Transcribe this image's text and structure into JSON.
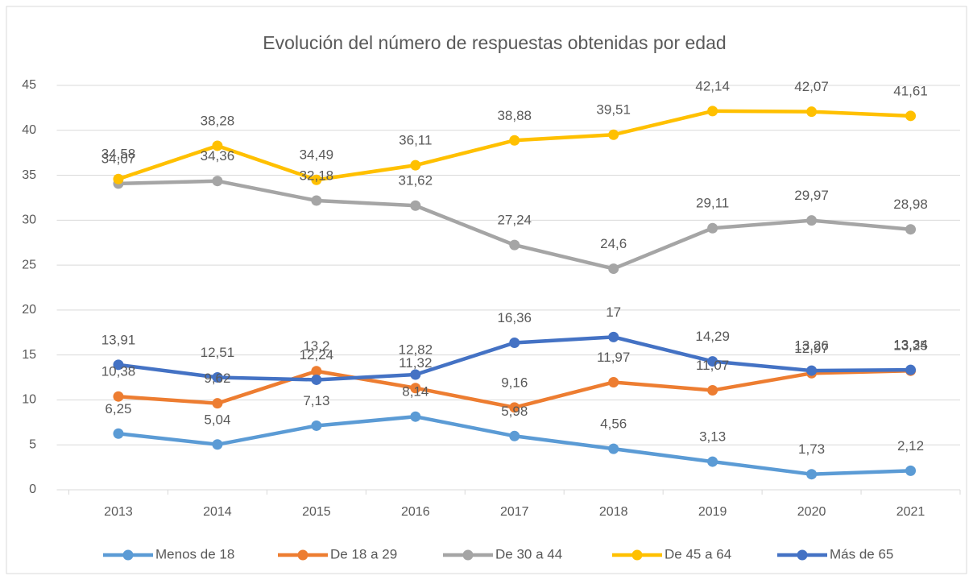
{
  "chart_data": {
    "type": "line",
    "title": "Evolución del número de respuestas obtenidas por edad",
    "categories": [
      "2013",
      "2014",
      "2015",
      "2016",
      "2017",
      "2018",
      "2019",
      "2020",
      "2021"
    ],
    "ylim": [
      0,
      45
    ],
    "yticks": [
      0,
      5,
      10,
      15,
      20,
      25,
      30,
      35,
      40,
      45
    ],
    "grid": true,
    "legend": "bottom",
    "series": [
      {
        "name": "Menos de 18",
        "color": "#5b9bd5",
        "values": [
          6.25,
          5.04,
          7.13,
          8.14,
          5.98,
          4.56,
          3.13,
          1.73,
          2.12
        ],
        "value_labels": [
          "6,25",
          "5,04",
          "7,13",
          "8,14",
          "5,98",
          "4,56",
          "3,13",
          "1,73",
          "2,12"
        ]
      },
      {
        "name": "De 18 a 29",
        "color": "#ed7d31",
        "values": [
          10.38,
          9.62,
          13.2,
          11.32,
          9.16,
          11.97,
          11.07,
          12.97,
          13.25
        ],
        "value_labels": [
          "10,38",
          "9,62",
          "13,2",
          "11,32",
          "9,16",
          "11,97",
          "11,07",
          "12,97",
          "13,25"
        ]
      },
      {
        "name": "De 30 a 44",
        "color": "#a5a5a5",
        "values": [
          34.07,
          34.36,
          32.18,
          31.62,
          27.24,
          24.6,
          29.11,
          29.97,
          28.98
        ],
        "value_labels": [
          "34,07",
          "34,36",
          "32,18",
          "31,62",
          "27,24",
          "24,6",
          "29,11",
          "29,97",
          "28,98"
        ]
      },
      {
        "name": "De 45 a 64",
        "color": "#ffc000",
        "values": [
          34.58,
          38.28,
          34.49,
          36.11,
          38.88,
          39.51,
          42.14,
          42.07,
          41.61
        ],
        "value_labels": [
          "34,58",
          "38,28",
          "34,49",
          "36,11",
          "38,88",
          "39,51",
          "42,14",
          "42,07",
          "41,61"
        ]
      },
      {
        "name": "Más de 65",
        "color": "#4472c4",
        "values": [
          13.91,
          12.51,
          12.24,
          12.82,
          16.36,
          17,
          14.29,
          13.26,
          13.34
        ],
        "value_labels": [
          "13,91",
          "12,51",
          "12,24",
          "12,82",
          "16,36",
          "17",
          "14,29",
          "13,26",
          "13,34"
        ]
      }
    ]
  }
}
